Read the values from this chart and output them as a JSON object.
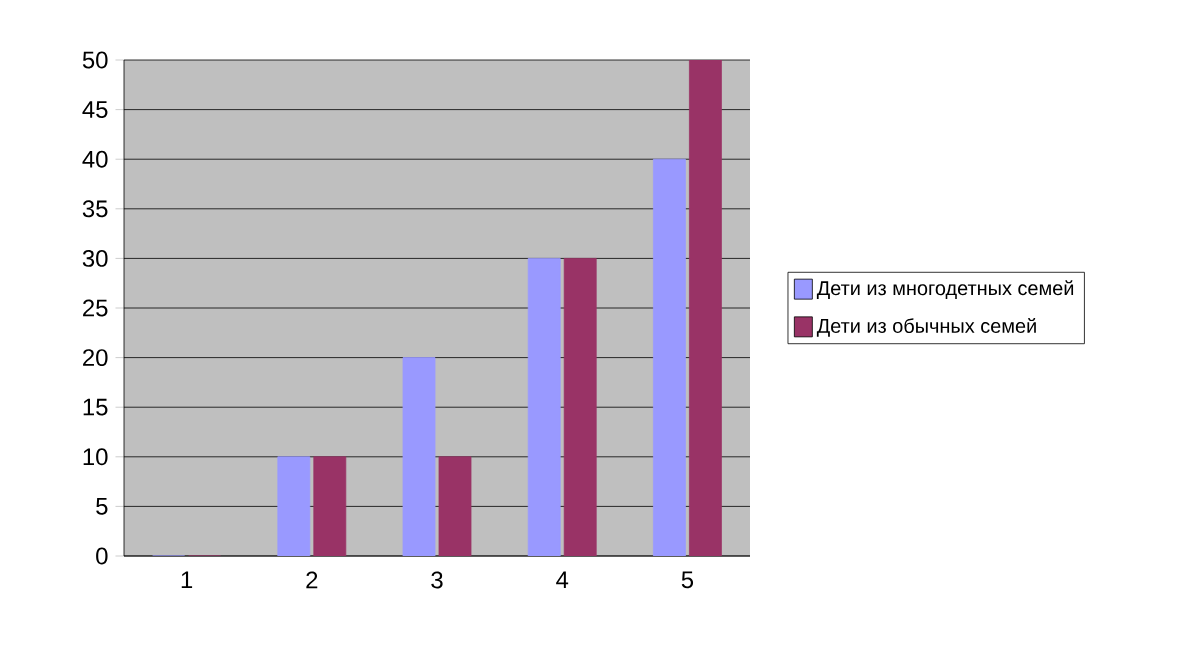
{
  "chart_data": {
    "type": "bar",
    "categories": [
      "1",
      "2",
      "3",
      "4",
      "5"
    ],
    "series": [
      {
        "name": "Дети из многодетных семей",
        "color": "#9999ff",
        "values": [
          0,
          10,
          20,
          30,
          40
        ]
      },
      {
        "name": "Дети из обычных семей",
        "color": "#993366",
        "values": [
          0,
          10,
          10,
          30,
          50
        ]
      }
    ],
    "ylim": [
      0,
      50
    ],
    "yticks": [
      0,
      5,
      10,
      15,
      20,
      25,
      30,
      35,
      40,
      45,
      50
    ],
    "grid": "y",
    "legend": "right"
  }
}
